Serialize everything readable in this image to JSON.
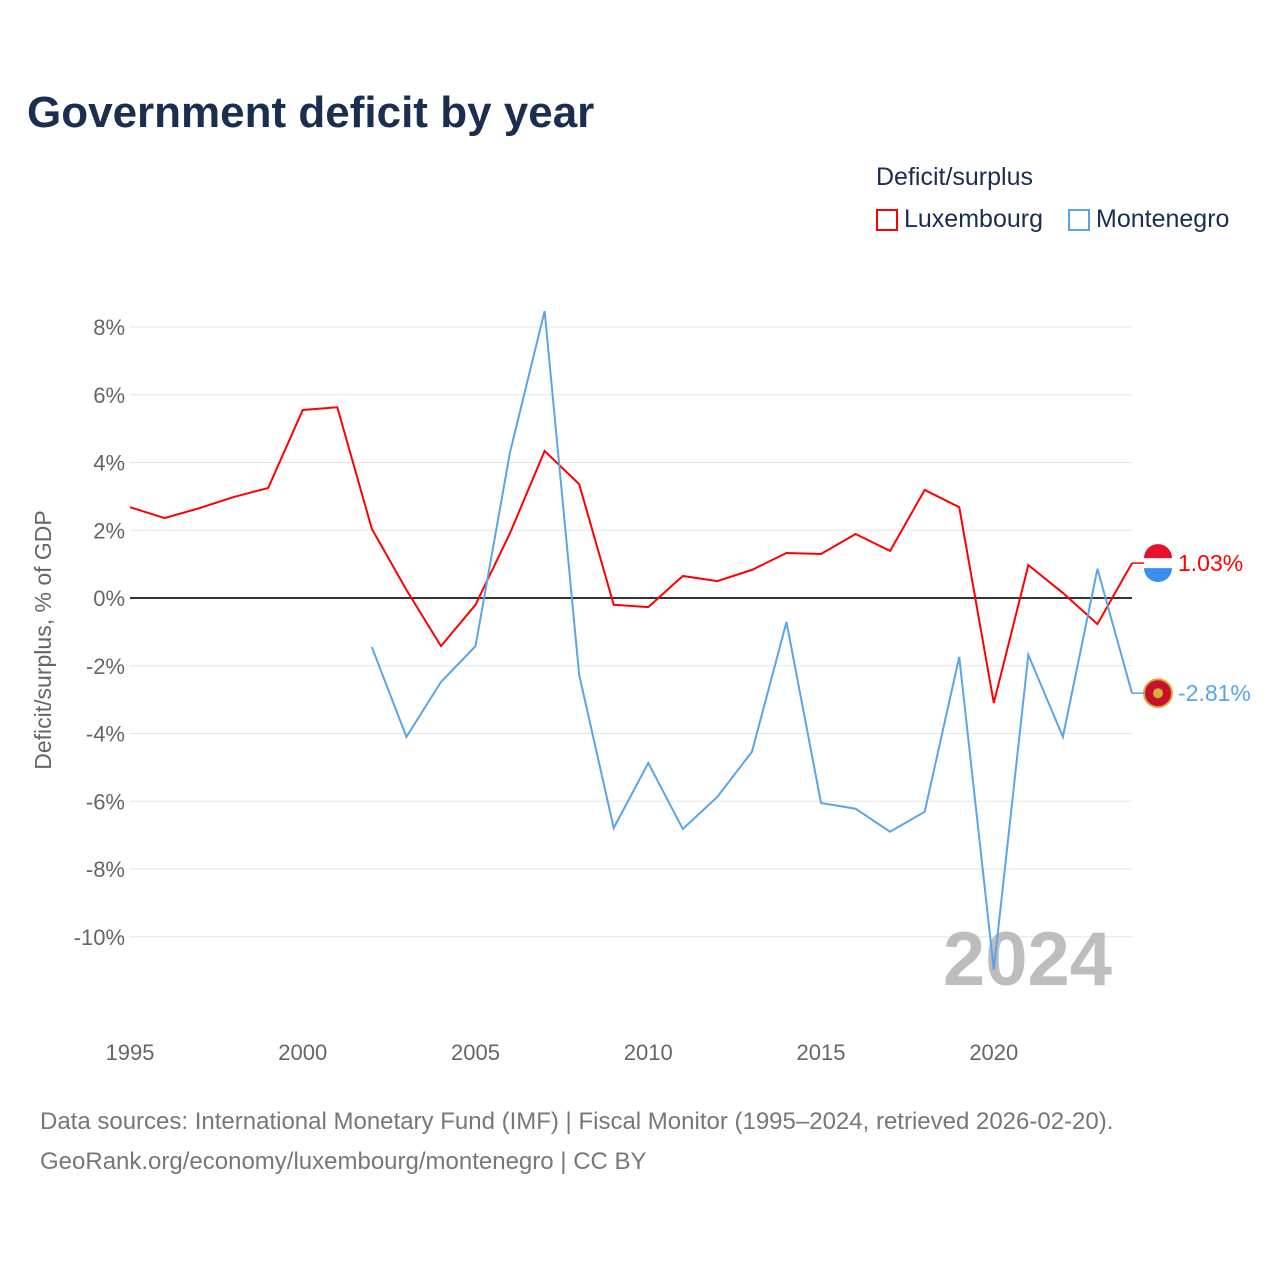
{
  "chart_data": {
    "type": "line",
    "title": "Government deficit by year",
    "ylabel": "Deficit/surplus, % of GDP",
    "xlabel": "",
    "legend_title": "Deficit/surplus",
    "legend_position": "top-right",
    "ylim": [
      -12,
      8.5
    ],
    "xlim": [
      1995,
      2024
    ],
    "yticks": [
      8,
      6,
      4,
      2,
      0,
      -2,
      -4,
      -6,
      -8,
      -10
    ],
    "ytick_labels": [
      "8%",
      "6%",
      "4%",
      "2%",
      "0%",
      "-2%",
      "-4%",
      "-6%",
      "-8%",
      "-10%"
    ],
    "xticks": [
      1995,
      2000,
      2005,
      2010,
      2015,
      2020
    ],
    "xtick_labels": [
      "1995",
      "2000",
      "2005",
      "2010",
      "2015",
      "2020"
    ],
    "year_watermark": "2024",
    "series": [
      {
        "name": "Luxembourg",
        "color": "#ff0000",
        "end_label": "1.03%",
        "x": [
          1995,
          1996,
          1997,
          1998,
          1999,
          2000,
          2001,
          2002,
          2003,
          2004,
          2005,
          2006,
          2007,
          2008,
          2009,
          2010,
          2011,
          2012,
          2013,
          2014,
          2015,
          2016,
          2017,
          2018,
          2019,
          2020,
          2021,
          2022,
          2023,
          2024
        ],
        "values": [
          2.68,
          2.36,
          2.65,
          2.98,
          3.25,
          5.55,
          5.63,
          2.04,
          0.24,
          -1.42,
          -0.2,
          1.92,
          4.34,
          3.36,
          -0.2,
          -0.27,
          0.65,
          0.5,
          0.83,
          1.33,
          1.3,
          1.89,
          1.39,
          3.19,
          2.68,
          -3.1,
          0.97,
          0.15,
          -0.77,
          1.03
        ]
      },
      {
        "name": "Montenegro",
        "color": "#5aa5e8",
        "end_label": "-2.81%",
        "x": [
          2002,
          2003,
          2004,
          2005,
          2006,
          2007,
          2008,
          2009,
          2010,
          2011,
          2012,
          2013,
          2014,
          2015,
          2016,
          2017,
          2018,
          2019,
          2020,
          2021,
          2022,
          2023,
          2024
        ],
        "values": [
          -1.45,
          -4.1,
          -2.48,
          -1.42,
          4.31,
          8.47,
          -2.27,
          -6.79,
          -4.87,
          -6.82,
          -5.87,
          -4.54,
          -0.71,
          -6.05,
          -6.22,
          -6.9,
          -6.31,
          -1.74,
          -10.97,
          -1.68,
          -4.1,
          0.86,
          -2.81
        ]
      }
    ]
  },
  "footer": {
    "line1": "Data sources: International Monetary Fund (IMF) | Fiscal Monitor (1995–2024, retrieved 2026-02-20).",
    "line2": "GeoRank.org/economy/luxembourg/montenegro | CC BY"
  }
}
